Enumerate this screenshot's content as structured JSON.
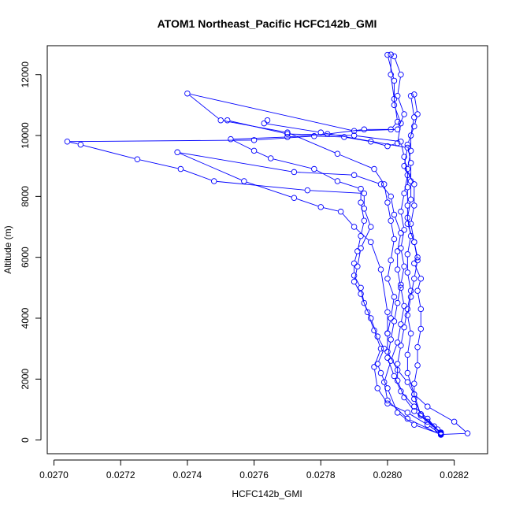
{
  "chart_data": {
    "type": "scatter",
    "title": "ATOM1 Northeast_Pacific HCFC142b_GMI",
    "xlabel": "HCFC142b_GMI",
    "ylabel": "Altitude (m)",
    "xlim": [
      0.02698,
      0.0283
    ],
    "ylim": [
      -450,
      12950
    ],
    "xticks": [
      0.027,
      0.0272,
      0.0274,
      0.0276,
      0.0278,
      0.028,
      0.0282
    ],
    "xtick_labels": [
      "0.0270",
      "0.0272",
      "0.0274",
      "0.0276",
      "0.0278",
      "0.0280",
      "0.0282"
    ],
    "yticks": [
      0,
      2000,
      4000,
      6000,
      8000,
      10000,
      12000
    ],
    "ytick_labels": [
      "0",
      "2000",
      "4000",
      "6000",
      "8000",
      "10000",
      "12000"
    ],
    "grid": false,
    "marker": "open-circle",
    "color": "#0000ff",
    "series": [
      {
        "points": [
          [
            0.02816,
            180
          ],
          [
            0.02815,
            350
          ],
          [
            0.02812,
            700
          ],
          [
            0.02808,
            1100
          ],
          [
            0.02804,
            1600
          ],
          [
            0.02802,
            2100
          ],
          [
            0.028,
            2700
          ],
          [
            0.02801,
            3300
          ],
          [
            0.02802,
            3900
          ],
          [
            0.02803,
            4500
          ],
          [
            0.02804,
            5100
          ],
          [
            0.02805,
            5700
          ],
          [
            0.02804,
            6300
          ],
          [
            0.02805,
            6900
          ],
          [
            0.02804,
            7500
          ],
          [
            0.02805,
            8100
          ],
          [
            0.02806,
            8700
          ],
          [
            0.02805,
            9300
          ],
          [
            0.02804,
            9800
          ],
          [
            0.0279,
            10000
          ],
          [
            0.0277,
            10050
          ],
          [
            0.02752,
            10500
          ]
        ]
      },
      {
        "points": [
          [
            0.02816,
            200
          ],
          [
            0.02812,
            500
          ],
          [
            0.02806,
            900
          ],
          [
            0.028,
            1200
          ],
          [
            0.02797,
            1700
          ],
          [
            0.02796,
            2400
          ],
          [
            0.02798,
            3000
          ],
          [
            0.02796,
            3600
          ],
          [
            0.02794,
            4200
          ],
          [
            0.02792,
            4800
          ],
          [
            0.0279,
            5200
          ],
          [
            0.02791,
            5700
          ],
          [
            0.02792,
            6300
          ],
          [
            0.02795,
            7000
          ],
          [
            0.02793,
            7600
          ],
          [
            0.02793,
            8100
          ],
          [
            0.02776,
            8200
          ],
          [
            0.02748,
            8500
          ],
          [
            0.02738,
            8900
          ],
          [
            0.02725,
            9220
          ],
          [
            0.02708,
            9700
          ],
          [
            0.02704,
            9800
          ],
          [
            0.0276,
            9850
          ],
          [
            0.02778,
            9980
          ],
          [
            0.02787,
            9950
          ],
          [
            0.02795,
            9800
          ],
          [
            0.028,
            9650
          ],
          [
            0.02803,
            9750
          ],
          [
            0.02804,
            10400
          ],
          [
            0.02802,
            11000
          ],
          [
            0.02802,
            11800
          ],
          [
            0.028,
            12650
          ]
        ]
      },
      {
        "points": [
          [
            0.02816,
            250
          ],
          [
            0.0281,
            800
          ],
          [
            0.02808,
            1500
          ],
          [
            0.02806,
            2200
          ],
          [
            0.02806,
            2800
          ],
          [
            0.02807,
            3500
          ],
          [
            0.02806,
            4100
          ],
          [
            0.02807,
            4700
          ],
          [
            0.02808,
            5300
          ],
          [
            0.02809,
            5900
          ],
          [
            0.02808,
            6500
          ],
          [
            0.02807,
            7100
          ],
          [
            0.02808,
            7700
          ],
          [
            0.02808,
            8400
          ],
          [
            0.02805,
            9000
          ],
          [
            0.02806,
            9600
          ],
          [
            0.0278,
            10100
          ],
          [
            0.02763,
            10400
          ],
          [
            0.02764,
            10500
          ]
        ]
      },
      {
        "points": [
          [
            0.02816,
            180
          ],
          [
            0.02824,
            220
          ],
          [
            0.0282,
            600
          ],
          [
            0.02812,
            1100
          ],
          [
            0.02808,
            1500
          ],
          [
            0.02806,
            1900
          ],
          [
            0.02803,
            2300
          ],
          [
            0.028,
            2900
          ],
          [
            0.028,
            3500
          ],
          [
            0.02801,
            4000
          ],
          [
            0.02802,
            4700
          ],
          [
            0.028,
            5300
          ],
          [
            0.02801,
            5900
          ],
          [
            0.02802,
            6600
          ],
          [
            0.02801,
            7200
          ],
          [
            0.028,
            7800
          ],
          [
            0.02799,
            8400
          ],
          [
            0.02796,
            8900
          ],
          [
            0.02785,
            9400
          ],
          [
            0.0277,
            10100
          ],
          [
            0.0275,
            10500
          ],
          [
            0.0274,
            11380
          ],
          [
            0.0279,
            10150
          ],
          [
            0.02803,
            10200
          ],
          [
            0.02805,
            10700
          ],
          [
            0.02803,
            11300
          ],
          [
            0.02804,
            12000
          ],
          [
            0.02802,
            12600
          ]
        ]
      },
      {
        "points": [
          [
            0.02816,
            230
          ],
          [
            0.02812,
            600
          ],
          [
            0.02808,
            950
          ],
          [
            0.02805,
            1400
          ],
          [
            0.02803,
            1950
          ],
          [
            0.02803,
            2500
          ],
          [
            0.02804,
            3100
          ],
          [
            0.02805,
            3700
          ],
          [
            0.02806,
            4300
          ],
          [
            0.02807,
            4900
          ],
          [
            0.02806,
            5500
          ],
          [
            0.02806,
            6100
          ],
          [
            0.02807,
            6700
          ],
          [
            0.02806,
            7300
          ],
          [
            0.02807,
            7900
          ],
          [
            0.02807,
            8500
          ],
          [
            0.02807,
            9100
          ],
          [
            0.02806,
            9700
          ],
          [
            0.02808,
            10300
          ],
          [
            0.02809,
            10700
          ],
          [
            0.02808,
            11350
          ]
        ]
      },
      {
        "points": [
          [
            0.02816,
            170
          ],
          [
            0.02806,
            700
          ],
          [
            0.028,
            1300
          ],
          [
            0.02799,
            1900
          ],
          [
            0.02801,
            2600
          ],
          [
            0.02803,
            3200
          ],
          [
            0.02804,
            3800
          ],
          [
            0.02805,
            4400
          ],
          [
            0.02804,
            5000
          ],
          [
            0.02803,
            5600
          ],
          [
            0.02803,
            6200
          ],
          [
            0.02804,
            6800
          ],
          [
            0.02802,
            7400
          ],
          [
            0.02801,
            8000
          ],
          [
            0.02798,
            8400
          ],
          [
            0.0279,
            8700
          ],
          [
            0.02772,
            8800
          ],
          [
            0.02737,
            9450
          ],
          [
            0.02757,
            8500
          ],
          [
            0.02772,
            7950
          ],
          [
            0.0278,
            7650
          ],
          [
            0.02786,
            7500
          ],
          [
            0.0279,
            7000
          ],
          [
            0.02795,
            6500
          ],
          [
            0.02798,
            5600
          ],
          [
            0.028,
            4200
          ],
          [
            0.028,
            3500
          ]
        ]
      },
      {
        "points": [
          [
            0.02816,
            210
          ],
          [
            0.02814,
            450
          ],
          [
            0.0281,
            850
          ],
          [
            0.02808,
            1350
          ],
          [
            0.02808,
            1850
          ],
          [
            0.02809,
            2450
          ],
          [
            0.02809,
            3050
          ],
          [
            0.0281,
            3650
          ],
          [
            0.0281,
            4300
          ],
          [
            0.02809,
            4900
          ],
          [
            0.0281,
            5300
          ],
          [
            0.02808,
            5800
          ],
          [
            0.02809,
            6000
          ],
          [
            0.02808,
            6500
          ],
          [
            0.02806,
            7100
          ],
          [
            0.02806,
            7700
          ],
          [
            0.02806,
            8300
          ],
          [
            0.02806,
            8900
          ],
          [
            0.02807,
            9500
          ],
          [
            0.02807,
            10000
          ],
          [
            0.02808,
            10600
          ],
          [
            0.02807,
            11300
          ]
        ]
      },
      {
        "points": [
          [
            0.02816,
            190
          ],
          [
            0.02808,
            500
          ],
          [
            0.02803,
            900
          ],
          [
            0.028,
            1700
          ],
          [
            0.02798,
            2200
          ],
          [
            0.02797,
            2500
          ],
          [
            0.02799,
            3000
          ],
          [
            0.02797,
            3400
          ],
          [
            0.02795,
            4000
          ],
          [
            0.02793,
            4500
          ],
          [
            0.02792,
            5000
          ],
          [
            0.0279,
            5400
          ],
          [
            0.0279,
            5800
          ],
          [
            0.02791,
            6200
          ],
          [
            0.02792,
            6700
          ],
          [
            0.02793,
            7200
          ],
          [
            0.02792,
            7800
          ],
          [
            0.02792,
            8250
          ],
          [
            0.02785,
            8500
          ],
          [
            0.02778,
            8900
          ],
          [
            0.02765,
            9250
          ],
          [
            0.0276,
            9500
          ],
          [
            0.02753,
            9880
          ],
          [
            0.0277,
            9950
          ],
          [
            0.02782,
            10050
          ],
          [
            0.02793,
            10200
          ],
          [
            0.02801,
            10200
          ],
          [
            0.02803,
            10450
          ],
          [
            0.02802,
            11200
          ],
          [
            0.02801,
            12000
          ],
          [
            0.02801,
            12660
          ]
        ]
      }
    ]
  }
}
